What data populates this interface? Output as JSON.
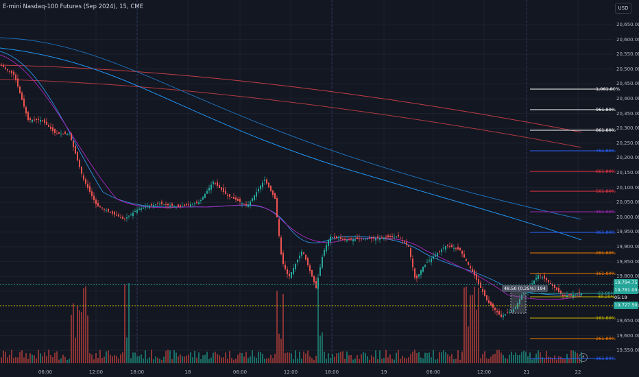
{
  "header": {
    "title": "E-mini Nasdaq-100 Futures (Sep 2024), 15, CME"
  },
  "currency_button": {
    "label": "USD"
  },
  "price_axis": {
    "labels": [
      "20,650.00",
      "20,600.00",
      "20,550.00",
      "20,500.00",
      "20,450.00",
      "20,400.00",
      "20,350.00",
      "20,300.00",
      "20,250.00",
      "20,200.00",
      "20,150.00",
      "20,100.00",
      "20,050.00",
      "20,000.00",
      "19,950.00",
      "19,900.00",
      "19,850.00",
      "19,800.00",
      "19,750.00",
      "19,700.00",
      "19,650.00",
      "19,600.00",
      "19,550.00"
    ]
  },
  "time_axis": {
    "labels": [
      "06:00",
      "12:00",
      "18:00",
      "18",
      "06:00",
      "12:00",
      "18:00",
      "19",
      "06:00",
      "12:00",
      "21",
      "22"
    ]
  },
  "fib_levels_upper": [
    "1,061.80%",
    "961.80%",
    "861.80%",
    "761.80%",
    "661.80%",
    "561.80%",
    "461.80%",
    "361.80%",
    "261.80%",
    "161.80%"
  ],
  "fib_levels_lower": [
    "161.80%",
    "261.80%",
    "361.80%"
  ],
  "fib_levels_small": [
    "61.80%",
    "38.20%"
  ],
  "price_tags": {
    "top": "19,794.75",
    "current": "19,781.00",
    "countdown": "05:19",
    "bottom": "19,727.50"
  },
  "measure_label": "48.50 (0.25%) 194",
  "flash_icon": "lightning-icon",
  "colors": {
    "background": "#131722",
    "up": "#26a69a",
    "down": "#ef5350",
    "ma_blue": "#2962ff",
    "ma_red": "#f23645",
    "fib_white": "#ffffff",
    "fib_blue": "#2962ff",
    "fib_red": "#f23645",
    "fib_orange": "#f57c00",
    "fib_yellow": "#c9b800"
  }
}
